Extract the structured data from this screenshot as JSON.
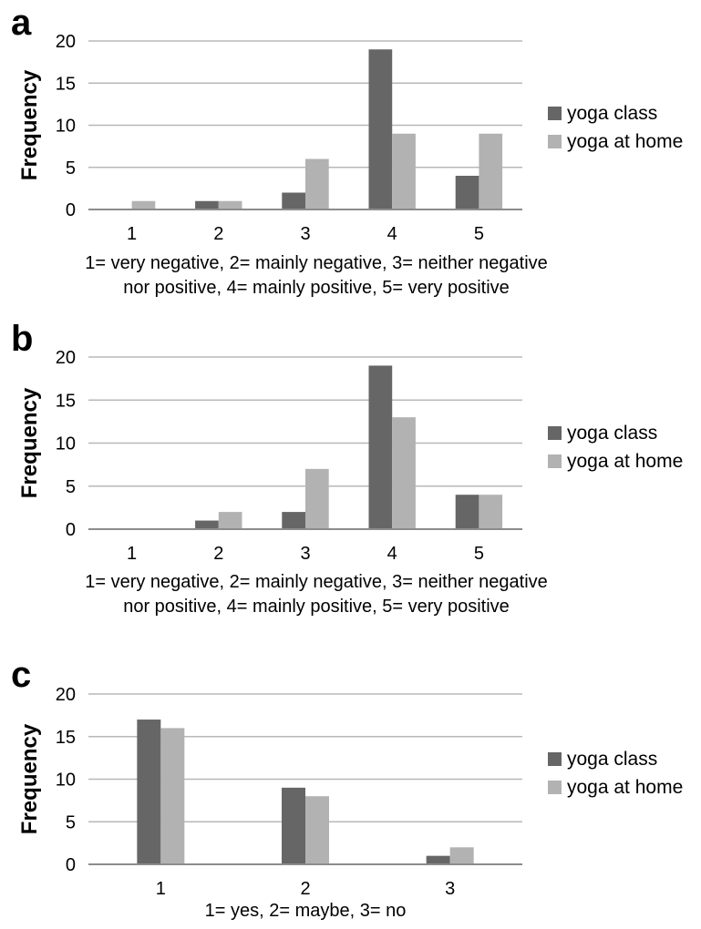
{
  "colors": {
    "yoga_class": "#666666",
    "yoga_at_home": "#b2b2b2",
    "grid": "#b8b8b8",
    "axis": "#8c8c8c"
  },
  "chart_data": [
    {
      "type": "bar",
      "panel": "a",
      "ylabel": "Frequency",
      "xlabel_lines": [
        "1= very negative, 2= mainly negative, 3= neither negative",
        "nor positive, 4= mainly positive, 5= very positive"
      ],
      "categories": [
        "1",
        "2",
        "3",
        "4",
        "5"
      ],
      "series": [
        {
          "name": "yoga class",
          "values": [
            0,
            1,
            2,
            19,
            4
          ]
        },
        {
          "name": "yoga at home",
          "values": [
            1,
            1,
            6,
            9,
            9
          ]
        }
      ],
      "ylim": [
        0,
        20
      ],
      "yticks": [
        "0",
        "5",
        "10",
        "15",
        "20"
      ],
      "grid": true,
      "legend": "right"
    },
    {
      "type": "bar",
      "panel": "b",
      "ylabel": "Frequency",
      "xlabel_lines": [
        "1= very negative, 2= mainly negative, 3= neither negative",
        "nor positive, 4= mainly positive, 5= very positive"
      ],
      "categories": [
        "1",
        "2",
        "3",
        "4",
        "5"
      ],
      "series": [
        {
          "name": "yoga class",
          "values": [
            0,
            1,
            2,
            19,
            4
          ]
        },
        {
          "name": "yoga at home",
          "values": [
            0,
            2,
            7,
            13,
            4
          ]
        }
      ],
      "ylim": [
        0,
        20
      ],
      "yticks": [
        "0",
        "5",
        "10",
        "15",
        "20"
      ],
      "grid": true,
      "legend": "right"
    },
    {
      "type": "bar",
      "panel": "c",
      "ylabel": "Frequency",
      "xlabel_lines": [
        "1= yes, 2= maybe, 3= no"
      ],
      "categories": [
        "1",
        "2",
        "3"
      ],
      "series": [
        {
          "name": "yoga class",
          "values": [
            17,
            9,
            1
          ]
        },
        {
          "name": "yoga at home",
          "values": [
            16,
            8,
            2
          ]
        }
      ],
      "ylim": [
        0,
        20
      ],
      "yticks": [
        "0",
        "5",
        "10",
        "15",
        "20"
      ],
      "grid": true,
      "legend": "right"
    }
  ]
}
